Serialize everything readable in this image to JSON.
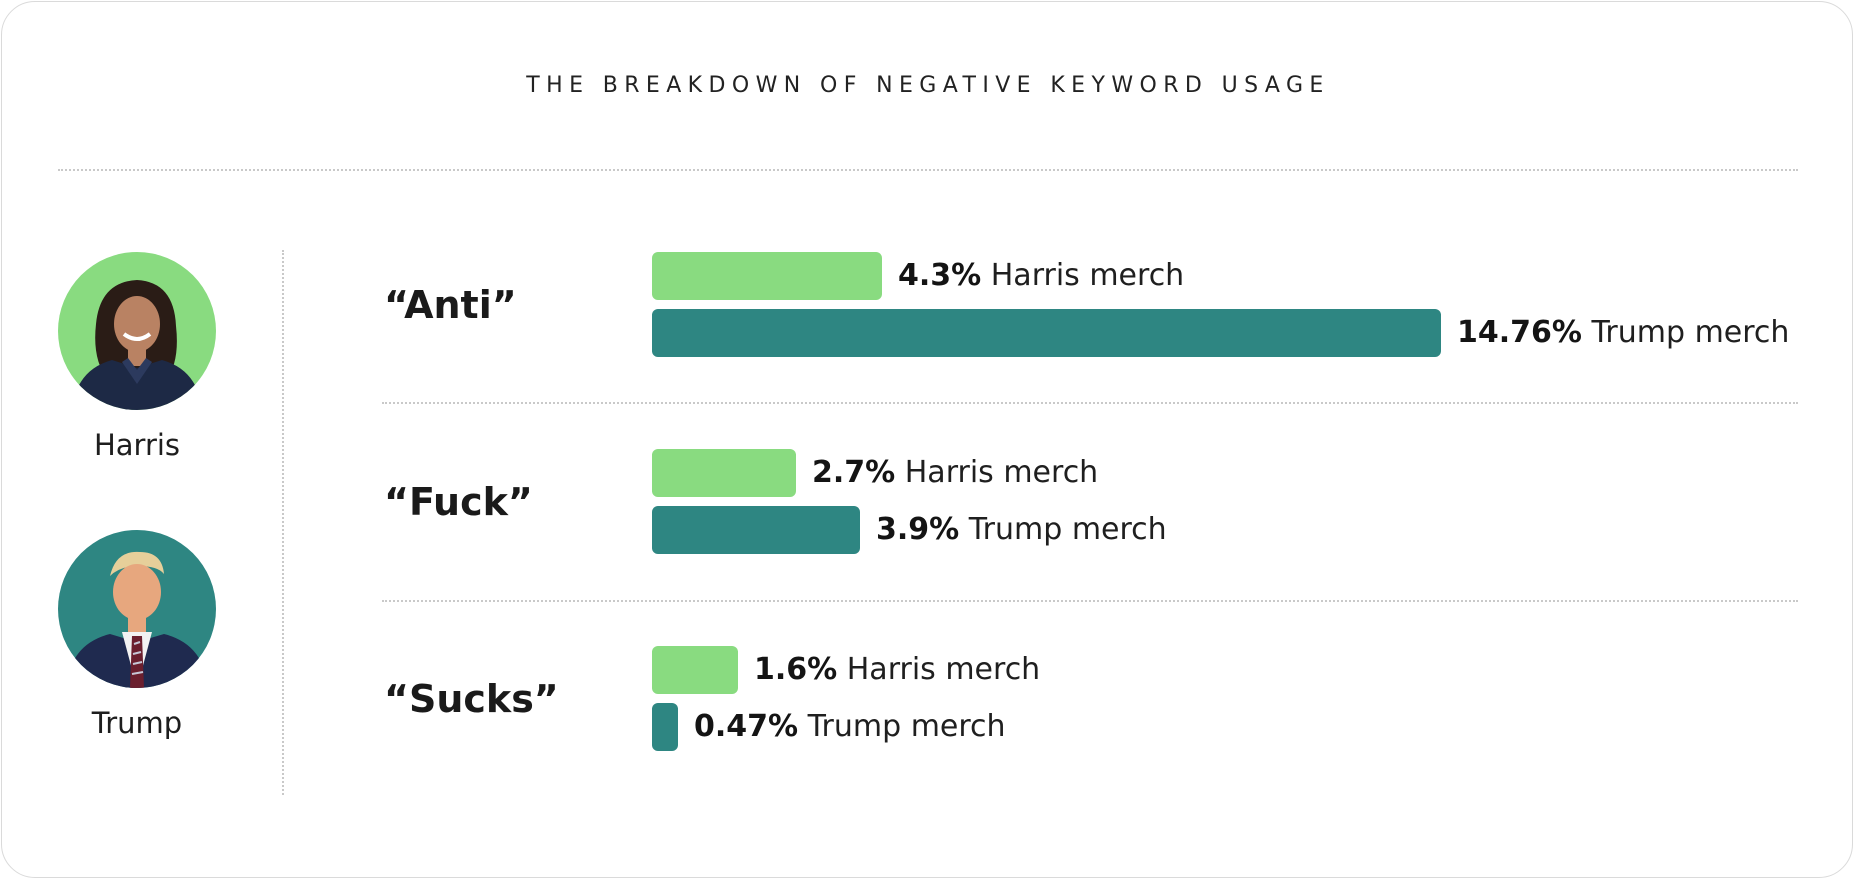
{
  "colors": {
    "harris": "#89DB80",
    "trump": "#2E8682",
    "trump_bg": "#2E8682",
    "harris_bg": "#89DB80"
  },
  "legend": [
    {
      "name": "Harris",
      "icon": "harris-portrait-icon"
    },
    {
      "name": "Trump",
      "icon": "trump-portrait-icon"
    }
  ],
  "chart_data": {
    "type": "bar",
    "orientation": "horizontal",
    "title": "THE BREAKDOWN OF NEGATIVE KEYWORD USAGE",
    "categories": [
      "“Anti”",
      "“Fuck”",
      "“Sucks”"
    ],
    "series": [
      {
        "name": "Harris",
        "values": [
          4.3,
          2.7,
          1.6
        ],
        "labels": [
          "4.3%",
          "2.7%",
          "1.6%"
        ],
        "suffix": "Harris merch"
      },
      {
        "name": "Trump",
        "values": [
          14.76,
          3.9,
          0.47
        ],
        "labels": [
          "14.76%",
          "3.9%",
          "0.47%"
        ],
        "suffix": "Trump merch"
      }
    ],
    "xlim": [
      0,
      14.76
    ],
    "grid": false,
    "legend_position": "left"
  }
}
